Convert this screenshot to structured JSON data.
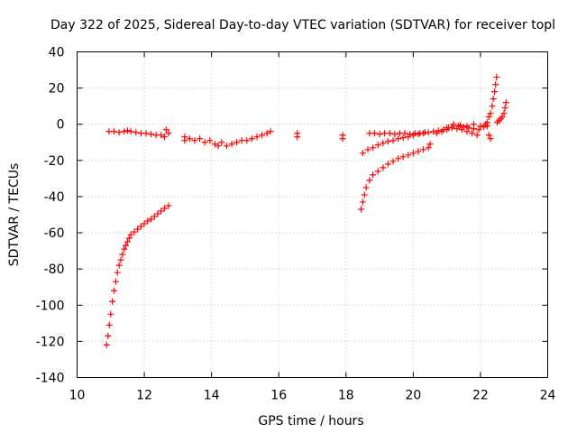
{
  "chart_data": {
    "type": "scatter",
    "title": "Day 322 of 2025, Sidereal Day-to-day VTEC variation (SDTVAR) for receiver topl",
    "xlabel": "GPS time / hours",
    "ylabel": "SDTVAR / TECUs",
    "xlim": [
      10,
      24
    ],
    "ylim": [
      -140,
      40
    ],
    "xticks": [
      10,
      12,
      14,
      16,
      18,
      20,
      22,
      24
    ],
    "yticks": [
      -140,
      -120,
      -100,
      -80,
      -60,
      -40,
      -20,
      0,
      20,
      40
    ],
    "grid": true,
    "legend": "none",
    "marker": "plus",
    "color": "#ff0000",
    "series": [
      {
        "points": [
          [
            10.88,
            -122
          ],
          [
            10.92,
            -117
          ],
          [
            10.96,
            -111
          ],
          [
            11.0,
            -105
          ],
          [
            11.05,
            -98
          ],
          [
            11.1,
            -92
          ],
          [
            11.15,
            -87
          ],
          [
            11.2,
            -82
          ],
          [
            11.25,
            -78
          ],
          [
            11.3,
            -75
          ],
          [
            11.35,
            -72
          ],
          [
            11.4,
            -69
          ],
          [
            11.45,
            -67
          ],
          [
            11.5,
            -65
          ],
          [
            11.55,
            -63
          ],
          [
            11.6,
            -61
          ],
          [
            11.7,
            -59.5
          ],
          [
            11.8,
            -58
          ],
          [
            11.9,
            -56.5
          ],
          [
            12.0,
            -55
          ],
          [
            12.1,
            -53.5
          ],
          [
            12.2,
            -52.5
          ],
          [
            12.3,
            -51
          ],
          [
            12.4,
            -49.5
          ],
          [
            12.5,
            -48
          ],
          [
            12.6,
            -46.5
          ],
          [
            12.72,
            -45
          ],
          [
            10.95,
            -4
          ],
          [
            11.1,
            -4
          ],
          [
            11.25,
            -4.5
          ],
          [
            11.4,
            -4
          ],
          [
            11.5,
            -3.5
          ],
          [
            11.6,
            -4
          ],
          [
            11.75,
            -4.5
          ],
          [
            11.9,
            -5
          ],
          [
            12.05,
            -5
          ],
          [
            12.2,
            -5.5
          ],
          [
            12.35,
            -6
          ],
          [
            12.5,
            -6
          ],
          [
            12.6,
            -7
          ],
          [
            12.65,
            -3
          ],
          [
            12.72,
            -5
          ],
          [
            13.2,
            -7
          ],
          [
            13.2,
            -9
          ],
          [
            13.35,
            -8
          ],
          [
            13.5,
            -9
          ],
          [
            13.65,
            -8
          ],
          [
            13.8,
            -10
          ],
          [
            13.95,
            -9
          ],
          [
            14.1,
            -11
          ],
          [
            14.2,
            -12
          ],
          [
            14.3,
            -10
          ],
          [
            14.45,
            -12
          ],
          [
            14.6,
            -11
          ],
          [
            14.75,
            -10
          ],
          [
            14.9,
            -9
          ],
          [
            15.05,
            -9
          ],
          [
            15.2,
            -8
          ],
          [
            15.35,
            -7
          ],
          [
            15.5,
            -6
          ],
          [
            15.65,
            -5
          ],
          [
            15.75,
            -4
          ],
          [
            16.55,
            -5
          ],
          [
            16.55,
            -7
          ],
          [
            17.9,
            -6
          ],
          [
            17.9,
            -8
          ],
          [
            18.45,
            -47
          ],
          [
            18.5,
            -43
          ],
          [
            18.55,
            -39
          ],
          [
            18.6,
            -35
          ],
          [
            18.7,
            -31
          ],
          [
            18.8,
            -28
          ],
          [
            18.95,
            -26
          ],
          [
            19.1,
            -24
          ],
          [
            19.25,
            -22
          ],
          [
            19.4,
            -20.5
          ],
          [
            19.55,
            -19
          ],
          [
            19.7,
            -18
          ],
          [
            19.85,
            -17
          ],
          [
            20.0,
            -16
          ],
          [
            20.15,
            -15
          ],
          [
            20.3,
            -14
          ],
          [
            20.45,
            -13
          ],
          [
            20.5,
            -11
          ],
          [
            18.5,
            -16
          ],
          [
            18.65,
            -14
          ],
          [
            18.8,
            -13
          ],
          [
            18.95,
            -11.5
          ],
          [
            19.1,
            -10.5
          ],
          [
            19.25,
            -9.5
          ],
          [
            19.4,
            -9
          ],
          [
            19.55,
            -8
          ],
          [
            19.7,
            -7.5
          ],
          [
            19.85,
            -7
          ],
          [
            20.0,
            -6
          ],
          [
            20.15,
            -5.5
          ],
          [
            20.3,
            -5
          ],
          [
            20.45,
            -4.5
          ],
          [
            18.7,
            -5
          ],
          [
            18.85,
            -5
          ],
          [
            19.0,
            -5.5
          ],
          [
            19.15,
            -5
          ],
          [
            19.3,
            -5
          ],
          [
            19.45,
            -5.5
          ],
          [
            19.6,
            -5
          ],
          [
            19.75,
            -5
          ],
          [
            19.9,
            -5.5
          ],
          [
            20.05,
            -5
          ],
          [
            20.2,
            -5
          ],
          [
            20.35,
            -4.5
          ],
          [
            20.6,
            -4
          ],
          [
            20.75,
            -3.5
          ],
          [
            20.9,
            -3
          ],
          [
            21.05,
            -2
          ],
          [
            21.2,
            -1
          ],
          [
            21.35,
            -1
          ],
          [
            21.5,
            -1.5
          ],
          [
            21.65,
            -2
          ],
          [
            21.8,
            -2.5
          ],
          [
            21.95,
            -3
          ],
          [
            22.1,
            -1.5
          ],
          [
            22.2,
            -1
          ],
          [
            20.7,
            -5
          ],
          [
            20.85,
            -4
          ],
          [
            21.0,
            -3
          ],
          [
            21.15,
            -2
          ],
          [
            21.3,
            -2.5
          ],
          [
            21.45,
            -3
          ],
          [
            21.6,
            -4
          ],
          [
            21.75,
            -5
          ],
          [
            21.9,
            -6
          ],
          [
            21.0,
            -2
          ],
          [
            21.2,
            0
          ],
          [
            21.4,
            -0.5
          ],
          [
            21.6,
            -1
          ],
          [
            21.8,
            0
          ],
          [
            22.0,
            -1
          ],
          [
            22.15,
            0
          ],
          [
            22.2,
            1
          ],
          [
            22.25,
            4
          ],
          [
            22.3,
            6
          ],
          [
            22.35,
            10
          ],
          [
            22.38,
            14
          ],
          [
            22.42,
            18
          ],
          [
            22.45,
            22
          ],
          [
            22.48,
            26
          ],
          [
            22.25,
            -6
          ],
          [
            22.3,
            -8
          ],
          [
            22.5,
            1
          ],
          [
            22.55,
            2
          ],
          [
            22.6,
            3
          ],
          [
            22.65,
            4
          ],
          [
            22.7,
            6
          ],
          [
            22.73,
            9
          ],
          [
            22.76,
            12
          ]
        ]
      }
    ]
  }
}
